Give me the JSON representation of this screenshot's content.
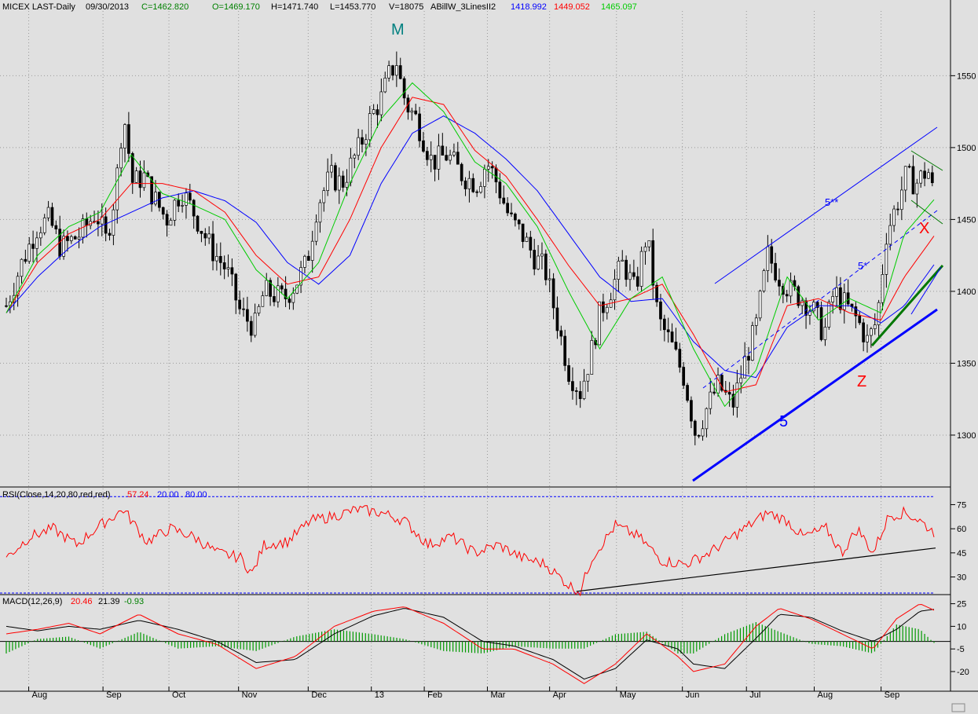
{
  "header": {
    "symbol": "MICEX LAST-Daily",
    "date": "09/30/2013",
    "close": "C=1462.820",
    "open": "O=1469.170",
    "high": "H=1471.740",
    "low": "L=1453.770",
    "volume": "V=18075",
    "indicator": "ABillW_3LinesII2",
    "ind_v1": "1418.992",
    "ind_v2": "1449.052",
    "ind_v3": "1465.097"
  },
  "colors": {
    "background": "#e0e0e0",
    "blue_line": "#0000ff",
    "red_line": "#ff0000",
    "green_line": "#00cc00",
    "candle": "#000000",
    "annotation_teal": "#008080",
    "histogram": "#009900"
  },
  "chart_data": [
    {
      "type": "candlestick",
      "title": "MICEX LAST-Daily",
      "ylim": [
        1265,
        1595
      ],
      "yticks": [
        1300,
        1350,
        1400,
        1450,
        1500,
        1550
      ],
      "ytick_labels": [
        "1300",
        "1350",
        "1400",
        "1450",
        "1500",
        "1550"
      ],
      "x_labels": [
        "Aug",
        "Sep",
        "Oct",
        "Nov",
        "Dec",
        "13",
        "Feb",
        "Mar",
        "Apr",
        "May",
        "Jun",
        "Jul",
        "Aug",
        "Sep"
      ],
      "series": [
        {
          "name": "Close",
          "x": [
            0,
            20,
            40,
            55,
            70,
            95,
            115,
            128,
            140,
            150,
            162,
            176,
            189,
            205,
            224,
            240,
            262,
            282,
            300,
            318,
            330,
            356,
            370,
            385,
            398,
            415,
            430,
            452,
            466,
            481,
            490,
            500,
            505,
            512,
            525,
            545,
            565,
            585,
            604,
            615,
            625,
            645,
            660,
            675,
            690,
            705,
            720,
            735,
            748,
            760,
            773,
            790,
            805,
            820,
            835,
            850,
            868,
            883,
            898,
            912,
            930,
            945,
            960,
            975,
            990,
            1005,
            1020,
            1035,
            1047,
            1060,
            1075,
            1090,
            1103,
            1115,
            1127,
            1140,
            1152,
            1165,
            1180,
            1189
          ],
          "values": [
            1390,
            1420,
            1445,
            1450,
            1430,
            1440,
            1455,
            1435,
            1470,
            1525,
            1475,
            1480,
            1465,
            1450,
            1470,
            1455,
            1430,
            1415,
            1385,
            1375,
            1400,
            1395,
            1405,
            1420,
            1460,
            1480,
            1475,
            1500,
            1520,
            1535,
            1550,
            1560,
            1545,
            1530,
            1520,
            1490,
            1495,
            1480,
            1475,
            1490,
            1480,
            1450,
            1440,
            1425,
            1415,
            1380,
            1345,
            1330,
            1355,
            1385,
            1400,
            1420,
            1400,
            1440,
            1380,
            1365,
            1340,
            1300,
            1320,
            1335,
            1320,
            1350,
            1375,
            1425,
            1410,
            1400,
            1395,
            1385,
            1370,
            1400,
            1390,
            1380,
            1365,
            1380,
            1440,
            1460,
            1480,
            1475,
            1485,
            1462.82
          ]
        },
        {
          "name": "Blue",
          "x": [
            0,
            40,
            80,
            120,
            160,
            200,
            240,
            280,
            320,
            360,
            400,
            440,
            480,
            520,
            560,
            600,
            640,
            680,
            720,
            760,
            800,
            840,
            880,
            920,
            960,
            1000,
            1040,
            1080,
            1120,
            1150,
            1190
          ],
          "values": [
            1385,
            1410,
            1430,
            1445,
            1455,
            1465,
            1470,
            1463,
            1448,
            1420,
            1405,
            1425,
            1475,
            1510,
            1522,
            1510,
            1492,
            1470,
            1440,
            1410,
            1393,
            1395,
            1365,
            1345,
            1340,
            1375,
            1390,
            1390,
            1378,
            1390,
            1420
          ]
        },
        {
          "name": "Red",
          "x": [
            0,
            40,
            80,
            120,
            160,
            200,
            240,
            280,
            320,
            360,
            400,
            440,
            480,
            520,
            560,
            600,
            640,
            680,
            720,
            760,
            800,
            840,
            880,
            920,
            960,
            1000,
            1040,
            1080,
            1120,
            1150,
            1190
          ],
          "values": [
            1385,
            1420,
            1440,
            1450,
            1475,
            1475,
            1470,
            1455,
            1425,
            1405,
            1410,
            1450,
            1500,
            1535,
            1530,
            1498,
            1480,
            1450,
            1418,
            1390,
            1395,
            1405,
            1370,
            1330,
            1335,
            1390,
            1395,
            1385,
            1380,
            1410,
            1440
          ]
        },
        {
          "name": "Green",
          "x": [
            0,
            40,
            80,
            120,
            160,
            200,
            240,
            280,
            320,
            360,
            400,
            440,
            480,
            520,
            560,
            600,
            640,
            680,
            720,
            760,
            800,
            840,
            880,
            920,
            960,
            1000,
            1040,
            1080,
            1120,
            1150,
            1190
          ],
          "values": [
            1385,
            1425,
            1445,
            1455,
            1495,
            1468,
            1460,
            1450,
            1415,
            1395,
            1420,
            1475,
            1520,
            1545,
            1525,
            1490,
            1475,
            1445,
            1400,
            1360,
            1395,
            1410,
            1360,
            1320,
            1345,
            1410,
            1380,
            1395,
            1385,
            1440,
            1465
          ]
        }
      ],
      "annotations": [
        "M",
        "5**",
        "5*",
        "5",
        "Z",
        "X"
      ]
    },
    {
      "type": "line",
      "title": "RSI(Close,14,20,80,red,red)",
      "legend": [
        "RSI(Close,14,20,80,red,red)",
        "57.24",
        "20.00",
        "80.00"
      ],
      "ylim": [
        20,
        85
      ],
      "yticks": [
        30,
        45,
        60,
        75
      ],
      "ytick_labels": [
        "30",
        "45",
        "60",
        "75"
      ],
      "levels": [
        20,
        80
      ],
      "series": [
        {
          "name": "RSI",
          "x": [
            0,
            30,
            60,
            90,
            120,
            150,
            180,
            210,
            240,
            270,
            300,
            315,
            330,
            360,
            390,
            420,
            450,
            480,
            510,
            540,
            570,
            600,
            630,
            660,
            690,
            720,
            735,
            750,
            780,
            810,
            840,
            870,
            900,
            930,
            960,
            975,
            1000,
            1020,
            1050,
            1070,
            1090,
            1110,
            1130,
            1150,
            1170,
            1189
          ],
          "values": [
            42,
            55,
            60,
            50,
            62,
            72,
            52,
            60,
            55,
            45,
            42,
            32,
            50,
            52,
            65,
            68,
            72,
            70,
            65,
            50,
            55,
            45,
            50,
            42,
            38,
            25,
            21,
            42,
            62,
            55,
            40,
            38,
            45,
            55,
            65,
            70,
            65,
            55,
            60,
            45,
            60,
            45,
            68,
            70,
            65,
            57.24
          ]
        },
        {
          "name": "Trendline",
          "x": [
            730,
            1190
          ],
          "values": [
            21,
            48
          ]
        }
      ]
    },
    {
      "type": "line",
      "title": "MACD(12,26,9)",
      "legend": [
        "MACD(12,26,9)",
        "20.46",
        "21.39",
        "-0.93"
      ],
      "ylim": [
        -32,
        30
      ],
      "yticks": [
        -20,
        -5,
        10,
        25
      ],
      "ytick_labels": [
        "-20",
        "-5",
        "10",
        "25"
      ],
      "series": [
        {
          "name": "MACD",
          "x": [
            0,
            40,
            80,
            120,
            170,
            220,
            270,
            320,
            370,
            420,
            470,
            510,
            560,
            610,
            650,
            700,
            740,
            780,
            820,
            860,
            880,
            920,
            960,
            990,
            1030,
            1070,
            1110,
            1140,
            1170,
            1189
          ],
          "values": [
            5,
            8,
            12,
            5,
            18,
            5,
            -2,
            -18,
            -10,
            10,
            20,
            23,
            12,
            -5,
            -5,
            -15,
            -28,
            -15,
            5,
            -10,
            -20,
            -15,
            10,
            22,
            15,
            5,
            -5,
            15,
            25,
            20.46
          ]
        },
        {
          "name": "Signal",
          "x": [
            0,
            40,
            80,
            120,
            170,
            220,
            270,
            320,
            370,
            420,
            470,
            510,
            560,
            610,
            650,
            700,
            740,
            780,
            820,
            860,
            880,
            920,
            960,
            990,
            1030,
            1070,
            1110,
            1140,
            1170,
            1189
          ],
          "values": [
            10,
            7,
            10,
            8,
            14,
            8,
            0,
            -14,
            -12,
            5,
            17,
            22,
            16,
            0,
            -3,
            -12,
            -25,
            -18,
            1,
            -5,
            -15,
            -18,
            2,
            18,
            16,
            7,
            0,
            8,
            20,
            21.39
          ]
        }
      ]
    }
  ]
}
